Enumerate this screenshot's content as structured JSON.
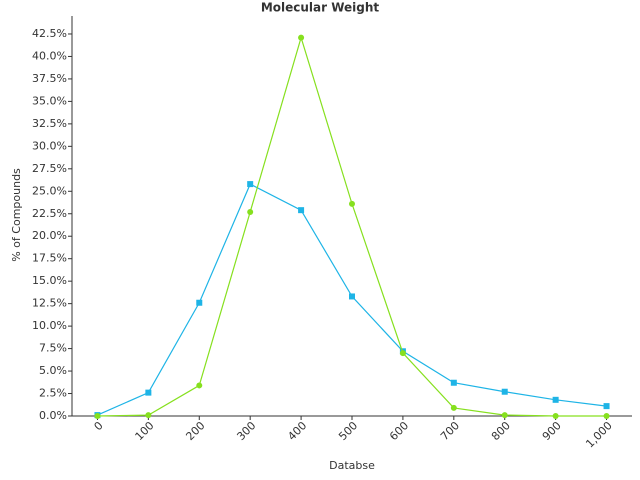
{
  "chart_data": {
    "type": "line",
    "title": "Molecular Weight",
    "x_label": "Databse",
    "y_label": "% of Compounds",
    "x": [
      0,
      100,
      200,
      300,
      400,
      500,
      600,
      700,
      800,
      900,
      1000
    ],
    "series": [
      {
        "color": "#1eb4e6",
        "marker": "square",
        "values": [
          0.1,
          2.6,
          12.6,
          25.8,
          22.9,
          13.3,
          7.2,
          3.7,
          2.7,
          1.8,
          1.1
        ]
      },
      {
        "color": "#86e01e",
        "marker": "circle",
        "values": [
          0,
          0.1,
          3.4,
          22.7,
          42.1,
          23.6,
          7.0,
          0.9,
          0.1,
          0,
          0
        ]
      }
    ],
    "xlim": [
      -50,
      1050
    ],
    "xticks": [
      0,
      100,
      200,
      300,
      400,
      500,
      600,
      700,
      800,
      900,
      {
        "value": 1000,
        "label": "1,000"
      }
    ],
    "ylim": [
      0,
      44.5
    ],
    "yticks": [
      {
        "value": 0,
        "label": "0.0%"
      },
      {
        "value": 2.5,
        "label": "2.5%"
      },
      {
        "value": 5,
        "label": "5.0%"
      },
      {
        "value": 7.5,
        "label": "7.5%"
      },
      {
        "value": 10,
        "label": "10.0%"
      },
      {
        "value": 12.5,
        "label": "12.5%"
      },
      {
        "value": 15,
        "label": "15.0%"
      },
      {
        "value": 17.5,
        "label": "17.5%"
      },
      {
        "value": 20,
        "label": "20.0%"
      },
      {
        "value": 22.5,
        "label": "22.5%"
      },
      {
        "value": 25,
        "label": "25.0%"
      },
      {
        "value": 27.5,
        "label": "27.5%"
      },
      {
        "value": 30,
        "label": "30.0%"
      },
      {
        "value": 32.5,
        "label": "32.5%"
      },
      {
        "value": 35,
        "label": "35.0%"
      },
      {
        "value": 37.5,
        "label": "37.5%"
      },
      {
        "value": 40,
        "label": "40.0%"
      },
      {
        "value": 42.5,
        "label": "42.5%"
      }
    ],
    "grid": false
  }
}
